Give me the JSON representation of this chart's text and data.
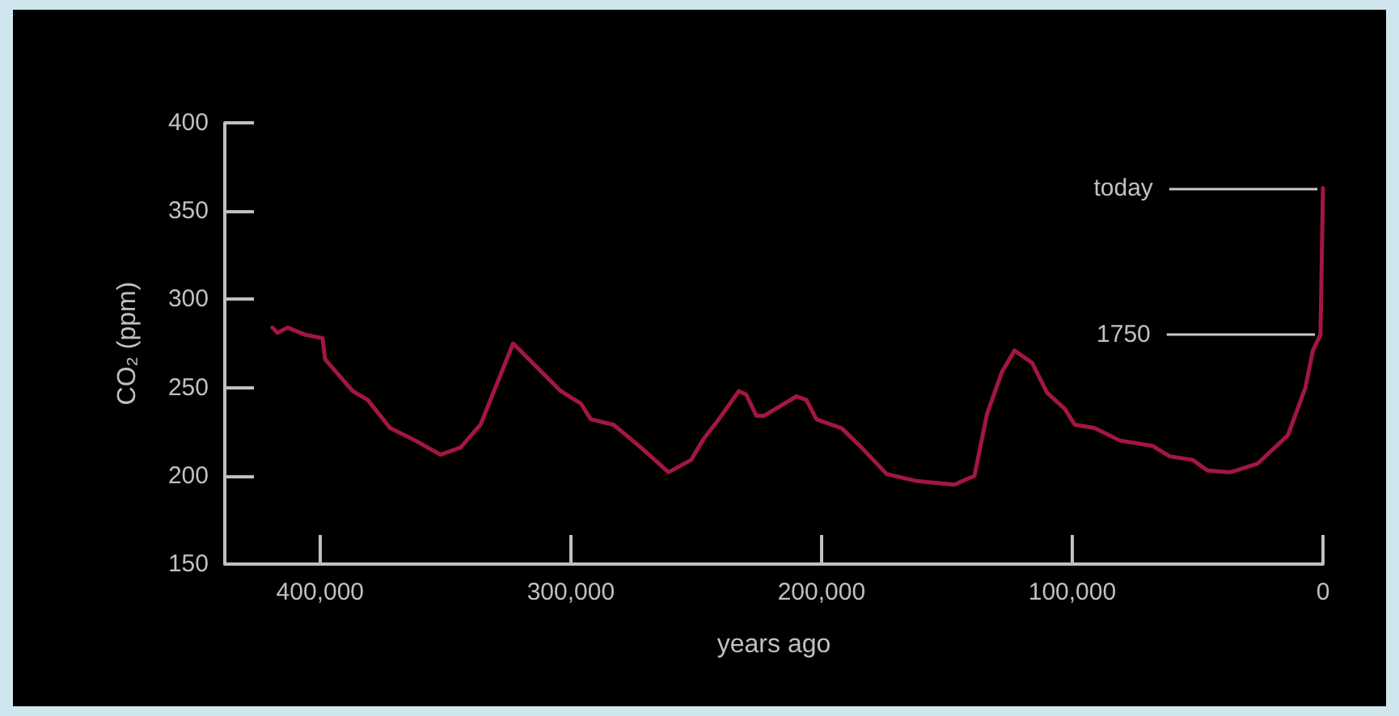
{
  "chart_data": {
    "type": "line",
    "xlabel": "years ago",
    "ylabel": "CO₂ (ppm)",
    "xlim": [
      438000,
      0
    ],
    "ylim": [
      150,
      400
    ],
    "xticks": [
      {
        "value": 400000,
        "label": "400,000"
      },
      {
        "value": 300000,
        "label": "300,000"
      },
      {
        "value": 200000,
        "label": "200,000"
      },
      {
        "value": 100000,
        "label": "100,000"
      },
      0
    ],
    "yticks": [
      150,
      200,
      250,
      300,
      350,
      400
    ],
    "marker": "none",
    "line_style": "solid",
    "annotations": [
      {
        "text": "today",
        "x": 0,
        "y": 363
      },
      {
        "text": "1750",
        "x": 1000,
        "y": 280
      }
    ],
    "series": [
      {
        "color": "#a3173f",
        "x": [
          419000,
          417000,
          413000,
          406000,
          399000,
          398000,
          387000,
          381000,
          372000,
          362000,
          352000,
          344000,
          336000,
          323000,
          304000,
          296000,
          292000,
          283000,
          272000,
          261000,
          252000,
          247000,
          241000,
          233000,
          230000,
          226000,
          223000,
          210000,
          206000,
          202000,
          192000,
          184000,
          174000,
          162000,
          147000,
          139000,
          134000,
          128000,
          123000,
          116000,
          110000,
          103000,
          99000,
          91000,
          81000,
          68000,
          61000,
          52000,
          46000,
          37000,
          26000,
          14000,
          7000,
          4000,
          1000,
          0
        ],
        "values": [
          284,
          281,
          284,
          280,
          278,
          266,
          248,
          243,
          227,
          220,
          212,
          216,
          229,
          275,
          248,
          241,
          232,
          229,
          216,
          202,
          209,
          221,
          232,
          248,
          246,
          234,
          234,
          245,
          243,
          232,
          227,
          216,
          201,
          197,
          195,
          200,
          235,
          259,
          271,
          264,
          247,
          238,
          229,
          227,
          220,
          217,
          211,
          209,
          203,
          202,
          207,
          223,
          250,
          271,
          280,
          363
        ]
      }
    ]
  }
}
